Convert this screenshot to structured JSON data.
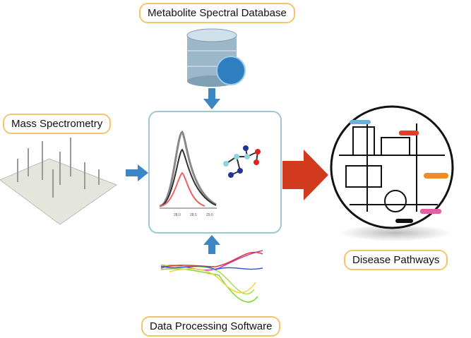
{
  "labels": {
    "database": "Metabolite Spectral Database",
    "mass_spec": "Mass Spectrometry",
    "disease": "Disease Pathways",
    "software": "Data Processing Software"
  },
  "center_plot": {
    "ticks": [
      "28.0",
      "28.5",
      "29.0"
    ]
  },
  "colors": {
    "box_border": "#9fc8d4",
    "arrow_blue": "#3d86c6",
    "arrow_red": "#d23a1e",
    "label_border": "#f3c46a"
  }
}
